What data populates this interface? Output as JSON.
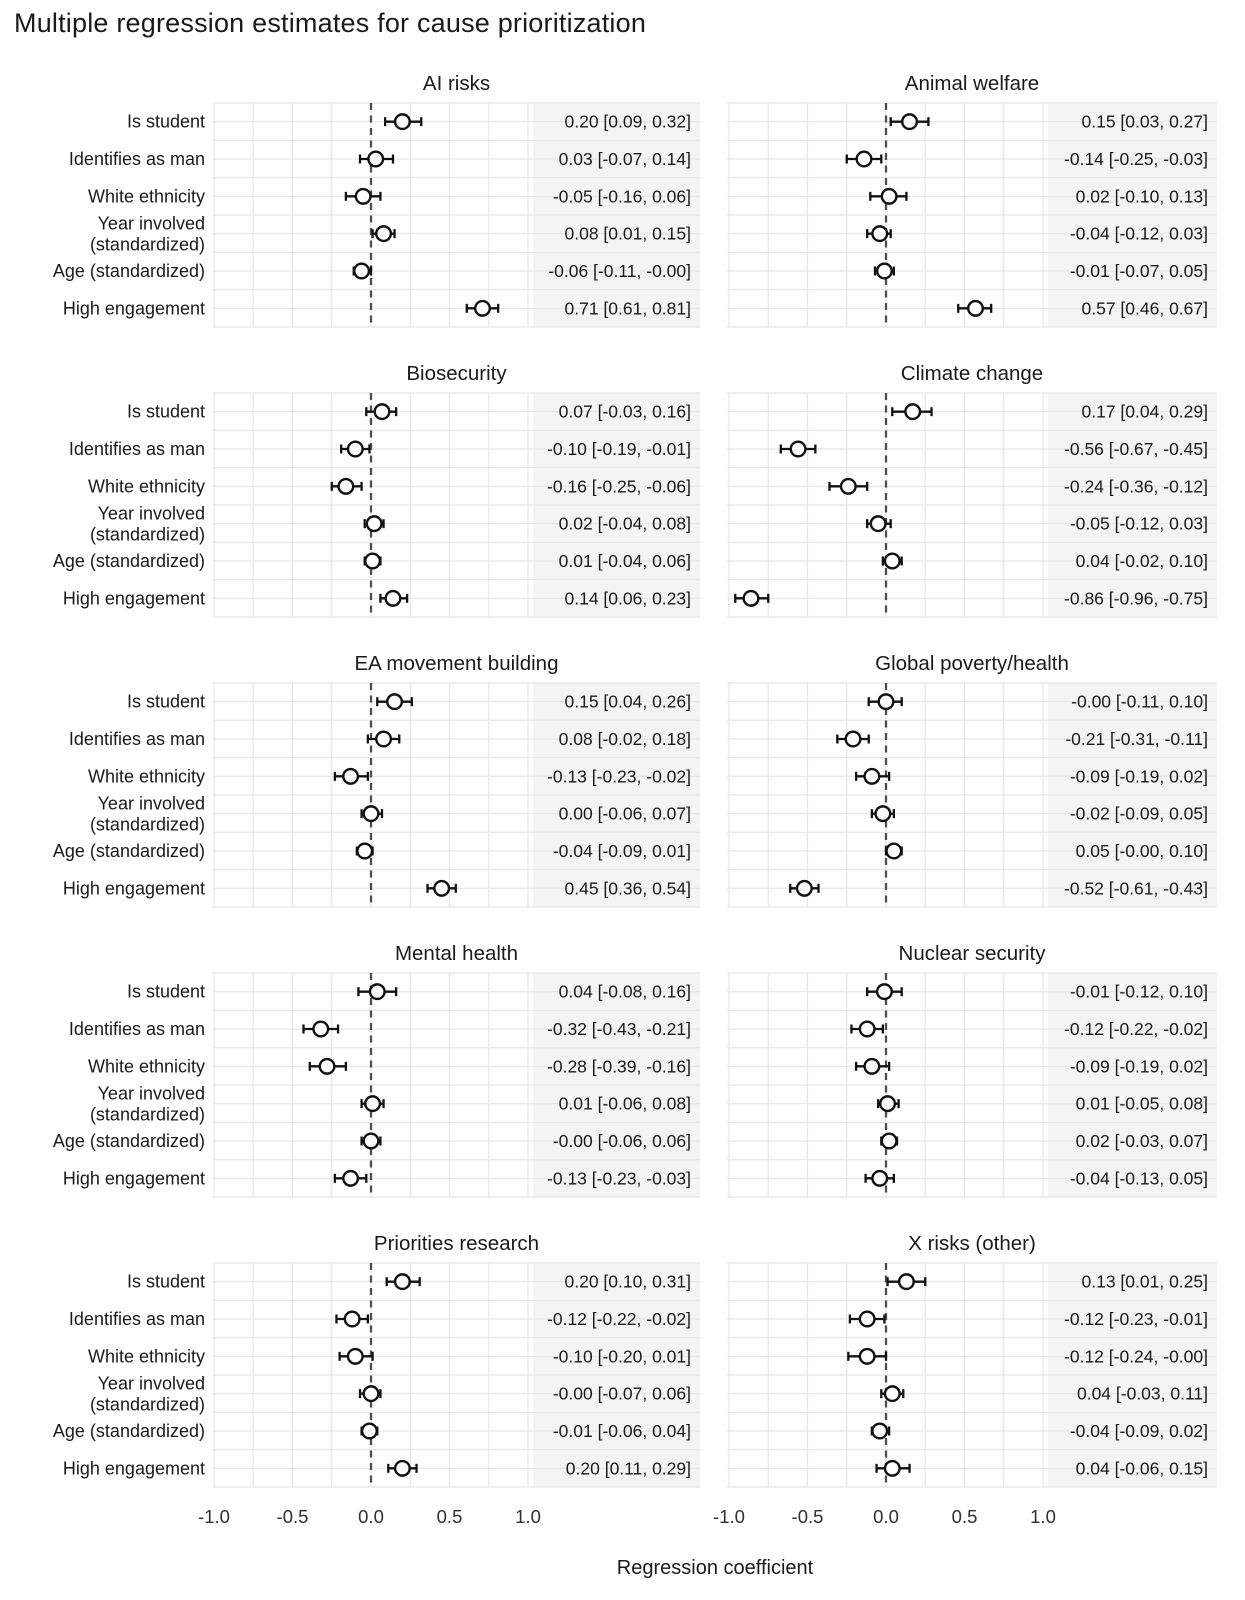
{
  "title": "Multiple regression estimates for cause prioritization",
  "x_axis": {
    "label": "Regression coefficient"
  },
  "colors": {
    "text": "#1a1a1a",
    "grid": "#e5e5e5",
    "shade": "#f4f4f4",
    "zero_line": "#4d4d4d",
    "marker_stroke": "#111111",
    "marker_fill": "#ffffff"
  },
  "chart_data": {
    "type": "scatter",
    "subtype": "forest-dot-whisker",
    "title": "Multiple regression estimates for cause prioritization",
    "xlabel": "Regression coefficient",
    "xlim": [
      -1.05,
      1.05
    ],
    "x_tick_values": [
      -1.0,
      -0.5,
      0.0,
      0.5,
      1.0
    ],
    "x_tick_labels": [
      "-1.0",
      "-0.5",
      "0.0",
      "0.5",
      "1.0"
    ],
    "grid": "on",
    "zero_line": "dashed",
    "legend": "none",
    "categories": [
      "Is student",
      "Identifies as man",
      "White ethnicity",
      "Year involved\n(standardized)",
      "Age (standardized)",
      "High engagement"
    ],
    "panels": [
      {
        "title": "AI risks",
        "rows": [
          {
            "est": 0.2,
            "lo": 0.09,
            "hi": 0.32,
            "label": "0.20 [0.09, 0.32]"
          },
          {
            "est": 0.03,
            "lo": -0.07,
            "hi": 0.14,
            "label": "0.03 [-0.07, 0.14]"
          },
          {
            "est": -0.05,
            "lo": -0.16,
            "hi": 0.06,
            "label": "-0.05 [-0.16, 0.06]"
          },
          {
            "est": 0.08,
            "lo": 0.01,
            "hi": 0.15,
            "label": "0.08 [0.01, 0.15]"
          },
          {
            "est": -0.06,
            "lo": -0.11,
            "hi": -0.0,
            "label": "-0.06 [-0.11, -0.00]"
          },
          {
            "est": 0.71,
            "lo": 0.61,
            "hi": 0.81,
            "label": "0.71 [0.61, 0.81]"
          }
        ]
      },
      {
        "title": "Animal welfare",
        "rows": [
          {
            "est": 0.15,
            "lo": 0.03,
            "hi": 0.27,
            "label": "0.15 [0.03, 0.27]"
          },
          {
            "est": -0.14,
            "lo": -0.25,
            "hi": -0.03,
            "label": "-0.14 [-0.25, -0.03]"
          },
          {
            "est": 0.02,
            "lo": -0.1,
            "hi": 0.13,
            "label": "0.02 [-0.10, 0.13]"
          },
          {
            "est": -0.04,
            "lo": -0.12,
            "hi": 0.03,
            "label": "-0.04 [-0.12, 0.03]"
          },
          {
            "est": -0.01,
            "lo": -0.07,
            "hi": 0.05,
            "label": "-0.01 [-0.07, 0.05]"
          },
          {
            "est": 0.57,
            "lo": 0.46,
            "hi": 0.67,
            "label": "0.57 [0.46, 0.67]"
          }
        ]
      },
      {
        "title": "Biosecurity",
        "rows": [
          {
            "est": 0.07,
            "lo": -0.03,
            "hi": 0.16,
            "label": "0.07 [-0.03, 0.16]"
          },
          {
            "est": -0.1,
            "lo": -0.19,
            "hi": -0.01,
            "label": "-0.10 [-0.19, -0.01]"
          },
          {
            "est": -0.16,
            "lo": -0.25,
            "hi": -0.06,
            "label": "-0.16 [-0.25, -0.06]"
          },
          {
            "est": 0.02,
            "lo": -0.04,
            "hi": 0.08,
            "label": "0.02 [-0.04, 0.08]"
          },
          {
            "est": 0.01,
            "lo": -0.04,
            "hi": 0.06,
            "label": "0.01 [-0.04, 0.06]"
          },
          {
            "est": 0.14,
            "lo": 0.06,
            "hi": 0.23,
            "label": "0.14 [0.06, 0.23]"
          }
        ]
      },
      {
        "title": "Climate change",
        "rows": [
          {
            "est": 0.17,
            "lo": 0.04,
            "hi": 0.29,
            "label": "0.17 [0.04, 0.29]"
          },
          {
            "est": -0.56,
            "lo": -0.67,
            "hi": -0.45,
            "label": "-0.56 [-0.67, -0.45]"
          },
          {
            "est": -0.24,
            "lo": -0.36,
            "hi": -0.12,
            "label": "-0.24 [-0.36, -0.12]"
          },
          {
            "est": -0.05,
            "lo": -0.12,
            "hi": 0.03,
            "label": "-0.05 [-0.12, 0.03]"
          },
          {
            "est": 0.04,
            "lo": -0.02,
            "hi": 0.1,
            "label": "0.04 [-0.02, 0.10]"
          },
          {
            "est": -0.86,
            "lo": -0.96,
            "hi": -0.75,
            "label": "-0.86 [-0.96, -0.75]"
          }
        ]
      },
      {
        "title": "EA movement building",
        "rows": [
          {
            "est": 0.15,
            "lo": 0.04,
            "hi": 0.26,
            "label": "0.15 [0.04, 0.26]"
          },
          {
            "est": 0.08,
            "lo": -0.02,
            "hi": 0.18,
            "label": "0.08 [-0.02, 0.18]"
          },
          {
            "est": -0.13,
            "lo": -0.23,
            "hi": -0.02,
            "label": "-0.13 [-0.23, -0.02]"
          },
          {
            "est": 0.0,
            "lo": -0.06,
            "hi": 0.07,
            "label": "0.00 [-0.06, 0.07]"
          },
          {
            "est": -0.04,
            "lo": -0.09,
            "hi": 0.01,
            "label": "-0.04 [-0.09, 0.01]"
          },
          {
            "est": 0.45,
            "lo": 0.36,
            "hi": 0.54,
            "label": "0.45 [0.36, 0.54]"
          }
        ]
      },
      {
        "title": "Global poverty/health",
        "rows": [
          {
            "est": -0.0,
            "lo": -0.11,
            "hi": 0.1,
            "label": "-0.00 [-0.11, 0.10]"
          },
          {
            "est": -0.21,
            "lo": -0.31,
            "hi": -0.11,
            "label": "-0.21 [-0.31, -0.11]"
          },
          {
            "est": -0.09,
            "lo": -0.19,
            "hi": 0.02,
            "label": "-0.09 [-0.19, 0.02]"
          },
          {
            "est": -0.02,
            "lo": -0.09,
            "hi": 0.05,
            "label": "-0.02 [-0.09, 0.05]"
          },
          {
            "est": 0.05,
            "lo": -0.0,
            "hi": 0.1,
            "label": "0.05 [-0.00, 0.10]"
          },
          {
            "est": -0.52,
            "lo": -0.61,
            "hi": -0.43,
            "label": "-0.52 [-0.61, -0.43]"
          }
        ]
      },
      {
        "title": "Mental health",
        "rows": [
          {
            "est": 0.04,
            "lo": -0.08,
            "hi": 0.16,
            "label": "0.04 [-0.08, 0.16]"
          },
          {
            "est": -0.32,
            "lo": -0.43,
            "hi": -0.21,
            "label": "-0.32 [-0.43, -0.21]"
          },
          {
            "est": -0.28,
            "lo": -0.39,
            "hi": -0.16,
            "label": "-0.28 [-0.39, -0.16]"
          },
          {
            "est": 0.01,
            "lo": -0.06,
            "hi": 0.08,
            "label": "0.01 [-0.06, 0.08]"
          },
          {
            "est": -0.0,
            "lo": -0.06,
            "hi": 0.06,
            "label": "-0.00 [-0.06, 0.06]"
          },
          {
            "est": -0.13,
            "lo": -0.23,
            "hi": -0.03,
            "label": "-0.13 [-0.23, -0.03]"
          }
        ]
      },
      {
        "title": "Nuclear security",
        "rows": [
          {
            "est": -0.01,
            "lo": -0.12,
            "hi": 0.1,
            "label": "-0.01 [-0.12, 0.10]"
          },
          {
            "est": -0.12,
            "lo": -0.22,
            "hi": -0.02,
            "label": "-0.12 [-0.22, -0.02]"
          },
          {
            "est": -0.09,
            "lo": -0.19,
            "hi": 0.02,
            "label": "-0.09 [-0.19, 0.02]"
          },
          {
            "est": 0.01,
            "lo": -0.05,
            "hi": 0.08,
            "label": "0.01 [-0.05, 0.08]"
          },
          {
            "est": 0.02,
            "lo": -0.03,
            "hi": 0.07,
            "label": "0.02 [-0.03, 0.07]"
          },
          {
            "est": -0.04,
            "lo": -0.13,
            "hi": 0.05,
            "label": "-0.04 [-0.13, 0.05]"
          }
        ]
      },
      {
        "title": "Priorities research",
        "rows": [
          {
            "est": 0.2,
            "lo": 0.1,
            "hi": 0.31,
            "label": "0.20 [0.10, 0.31]"
          },
          {
            "est": -0.12,
            "lo": -0.22,
            "hi": -0.02,
            "label": "-0.12 [-0.22, -0.02]"
          },
          {
            "est": -0.1,
            "lo": -0.2,
            "hi": 0.01,
            "label": "-0.10 [-0.20, 0.01]"
          },
          {
            "est": -0.0,
            "lo": -0.07,
            "hi": 0.06,
            "label": "-0.00 [-0.07, 0.06]"
          },
          {
            "est": -0.01,
            "lo": -0.06,
            "hi": 0.04,
            "label": "-0.01 [-0.06, 0.04]"
          },
          {
            "est": 0.2,
            "lo": 0.11,
            "hi": 0.29,
            "label": "0.20 [0.11, 0.29]"
          }
        ]
      },
      {
        "title": "X risks (other)",
        "rows": [
          {
            "est": 0.13,
            "lo": 0.01,
            "hi": 0.25,
            "label": "0.13 [0.01, 0.25]"
          },
          {
            "est": -0.12,
            "lo": -0.23,
            "hi": -0.01,
            "label": "-0.12 [-0.23, -0.01]"
          },
          {
            "est": -0.12,
            "lo": -0.24,
            "hi": -0.0,
            "label": "-0.12 [-0.24, -0.00]"
          },
          {
            "est": 0.04,
            "lo": -0.03,
            "hi": 0.11,
            "label": "0.04 [-0.03, 0.11]"
          },
          {
            "est": -0.04,
            "lo": -0.09,
            "hi": 0.02,
            "label": "-0.04 [-0.09, 0.02]"
          },
          {
            "est": 0.04,
            "lo": -0.06,
            "hi": 0.15,
            "label": "0.04 [-0.06, 0.15]"
          }
        ]
      }
    ]
  }
}
